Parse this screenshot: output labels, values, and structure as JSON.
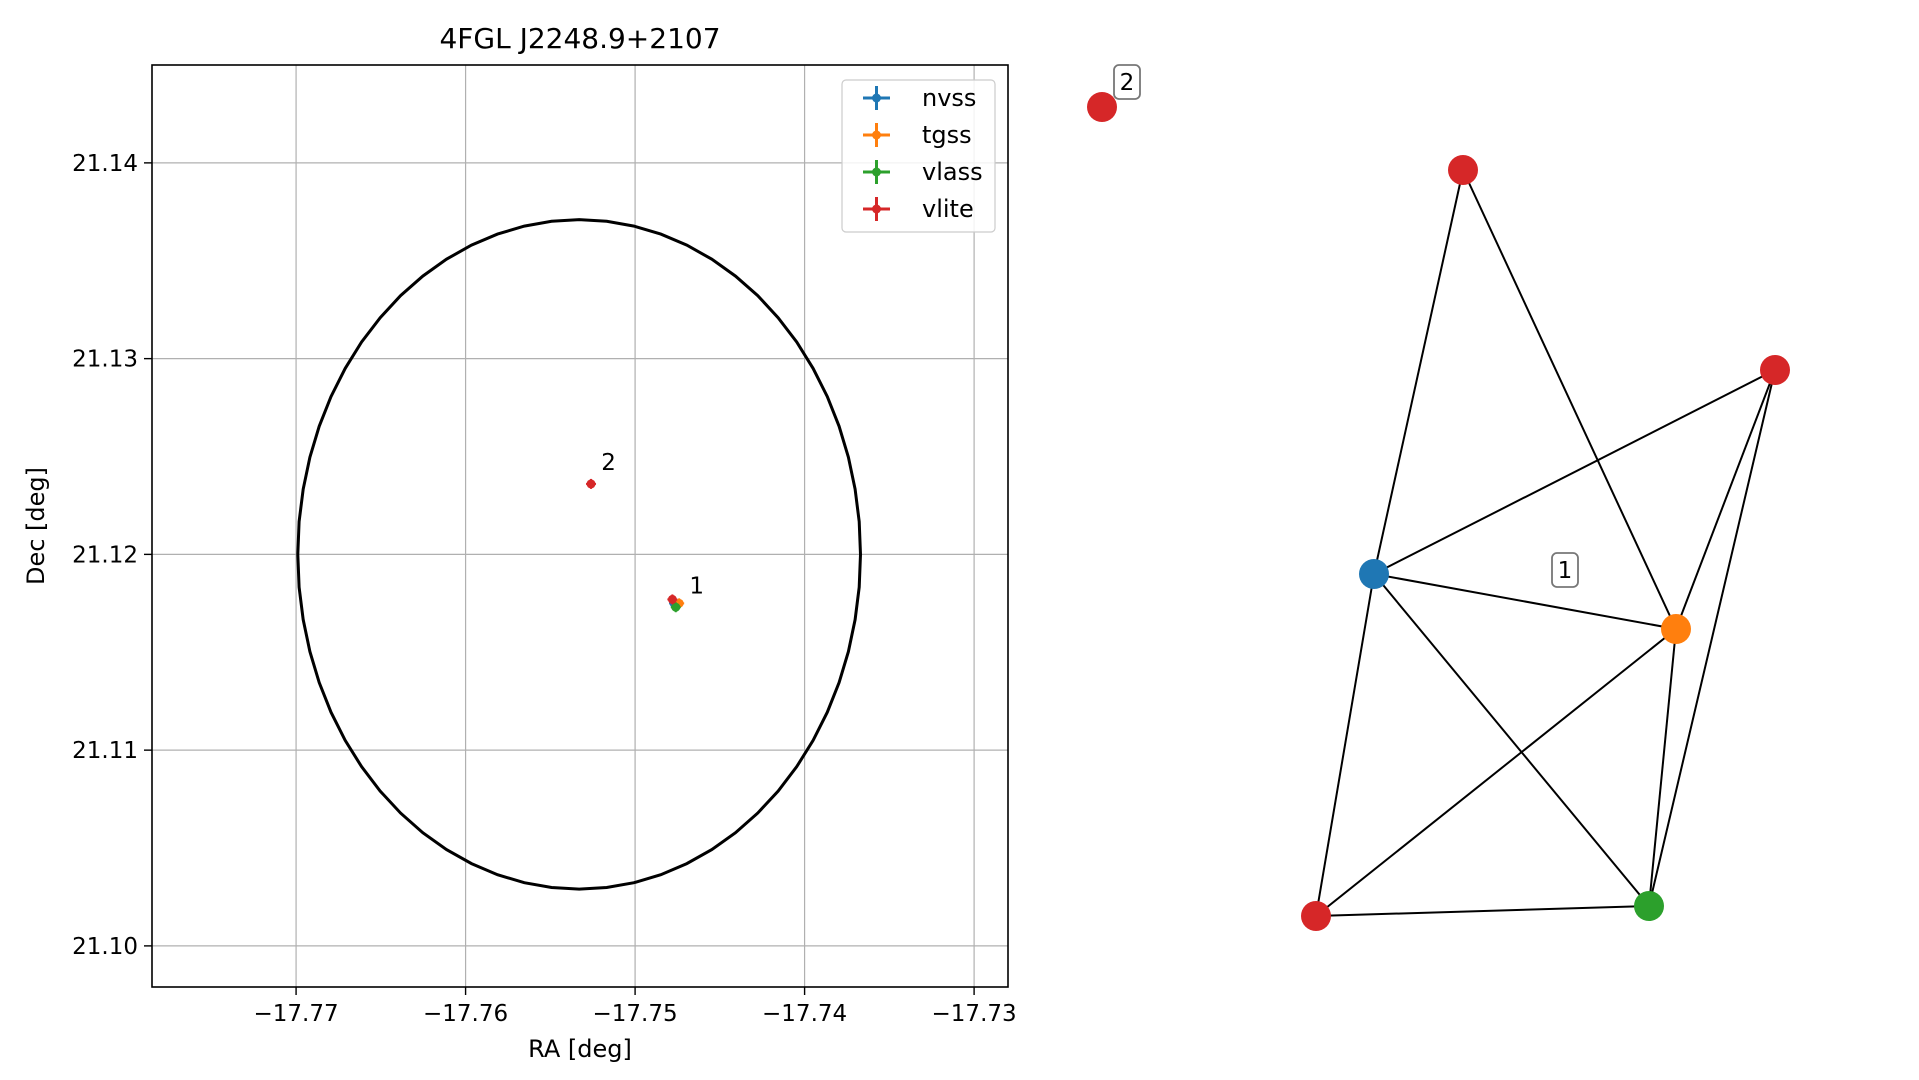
{
  "chart_data": [
    {
      "type": "scatter",
      "title": "4FGL J2248.9+2107",
      "xlabel": "RA [deg]",
      "ylabel": "Dec [deg]",
      "xlim": [
        -17.7785,
        -17.728
      ],
      "ylim": [
        21.0979,
        21.145
      ],
      "xticks": [
        -17.77,
        -17.76,
        -17.75,
        -17.74,
        -17.73
      ],
      "xtick_labels": [
        "−17.77",
        "−17.76",
        "−17.75",
        "−17.74",
        "−17.73"
      ],
      "yticks": [
        21.1,
        21.11,
        21.12,
        21.13,
        21.14
      ],
      "ytick_labels": [
        "21.10",
        "21.11",
        "21.12",
        "21.13",
        "21.14"
      ],
      "grid": true,
      "legend_position": "top-right",
      "ellipse": {
        "center_ra": -17.7533,
        "center_dec": 21.12,
        "semi_ra": 0.0166,
        "semi_dec": 0.0171,
        "color": "#000000"
      },
      "series": [
        {
          "name": "nvss",
          "color": "#1f77b4",
          "points": [
            {
              "x": -17.7477,
              "y": 21.1175
            }
          ]
        },
        {
          "name": "tgss",
          "color": "#ff7f0e",
          "points": [
            {
              "x": -17.7474,
              "y": 21.1175
            }
          ]
        },
        {
          "name": "vlass",
          "color": "#2ca02c",
          "points": [
            {
              "x": -17.7476,
              "y": 21.1173
            }
          ]
        },
        {
          "name": "vlite",
          "color": "#d62728",
          "points": [
            {
              "x": -17.7478,
              "y": 21.1177
            },
            {
              "x": -17.7526,
              "y": 21.1236
            }
          ]
        }
      ],
      "annotations": [
        {
          "text": "1",
          "x": -17.7468,
          "y": 21.118
        },
        {
          "text": "2",
          "x": -17.752,
          "y": 21.1243
        }
      ]
    },
    {
      "type": "network",
      "nodes": [
        {
          "id": "vlite_2",
          "color": "#d62728",
          "label": "2"
        },
        {
          "id": "vlite_a",
          "color": "#d62728"
        },
        {
          "id": "vlite_b",
          "color": "#d62728"
        },
        {
          "id": "nvss",
          "color": "#1f77b4"
        },
        {
          "id": "tgss",
          "color": "#ff7f0e"
        },
        {
          "id": "vlass",
          "color": "#2ca02c"
        },
        {
          "id": "vlite_c",
          "color": "#d62728"
        }
      ],
      "edges": [
        [
          "vlite_a",
          "nvss"
        ],
        [
          "vlite_a",
          "tgss"
        ],
        [
          "vlite_b",
          "nvss"
        ],
        [
          "vlite_b",
          "tgss"
        ],
        [
          "vlite_b",
          "vlass"
        ],
        [
          "nvss",
          "tgss"
        ],
        [
          "nvss",
          "vlass"
        ],
        [
          "nvss",
          "vlite_c"
        ],
        [
          "tgss",
          "vlass"
        ],
        [
          "tgss",
          "vlite_c"
        ],
        [
          "vlass",
          "vlite_c"
        ]
      ],
      "group_label": "1"
    }
  ]
}
